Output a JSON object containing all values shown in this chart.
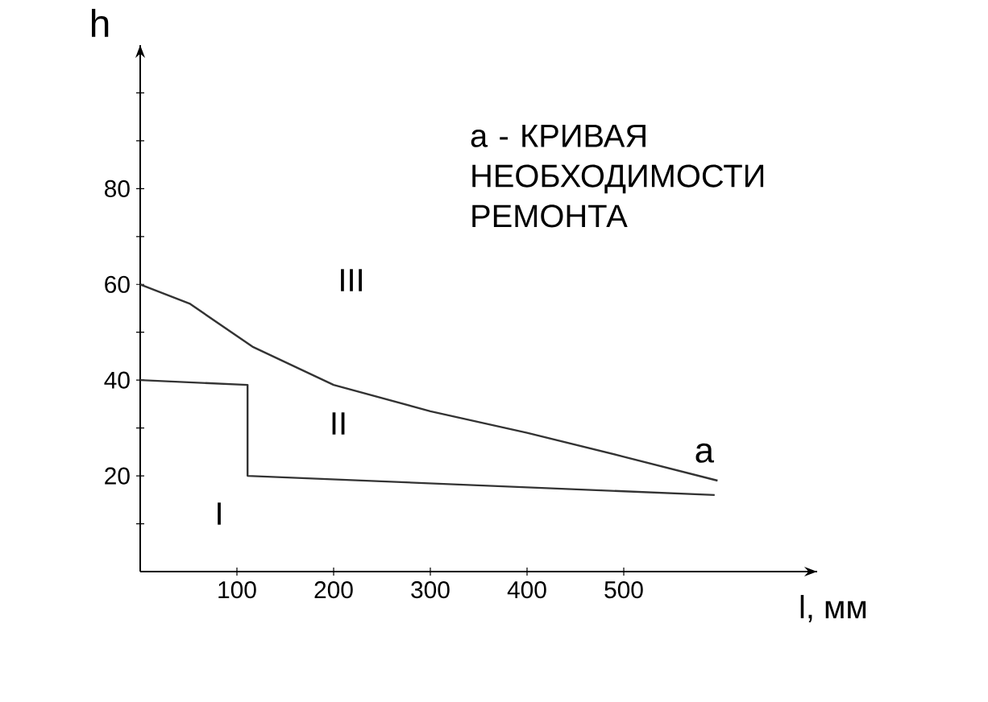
{
  "chart_data": {
    "type": "line",
    "xlabel": "l, мм",
    "ylabel": "h",
    "xlim": [
      0,
      700
    ],
    "ylim": [
      0,
      110
    ],
    "xticks": [
      100,
      200,
      300,
      400,
      500
    ],
    "yticks": [
      {
        "value": 10,
        "label": null
      },
      20,
      {
        "value": 30,
        "label": null
      },
      40,
      {
        "value": 50,
        "label": null
      },
      60,
      {
        "value": 70,
        "label": null
      },
      80,
      {
        "value": 90,
        "label": null
      },
      {
        "value": 100,
        "label": null
      }
    ],
    "line_style": "solid",
    "series": [
      {
        "name": "а",
        "color": "#333333",
        "x": [
          0,
          51,
          116,
          200,
          300,
          400,
          500,
          597
        ],
        "values": [
          60,
          56,
          47,
          39,
          33.5,
          29,
          24,
          19
        ]
      },
      {
        "color": "#333333",
        "x": [
          0,
          111,
          111,
          594
        ],
        "values": [
          40,
          39,
          20,
          16
        ]
      }
    ],
    "annotations": [
      "а - КРИВАЯ НЕОБХОДИМОСТИ РЕМОНТА",
      "I",
      "II",
      "III"
    ]
  }
}
